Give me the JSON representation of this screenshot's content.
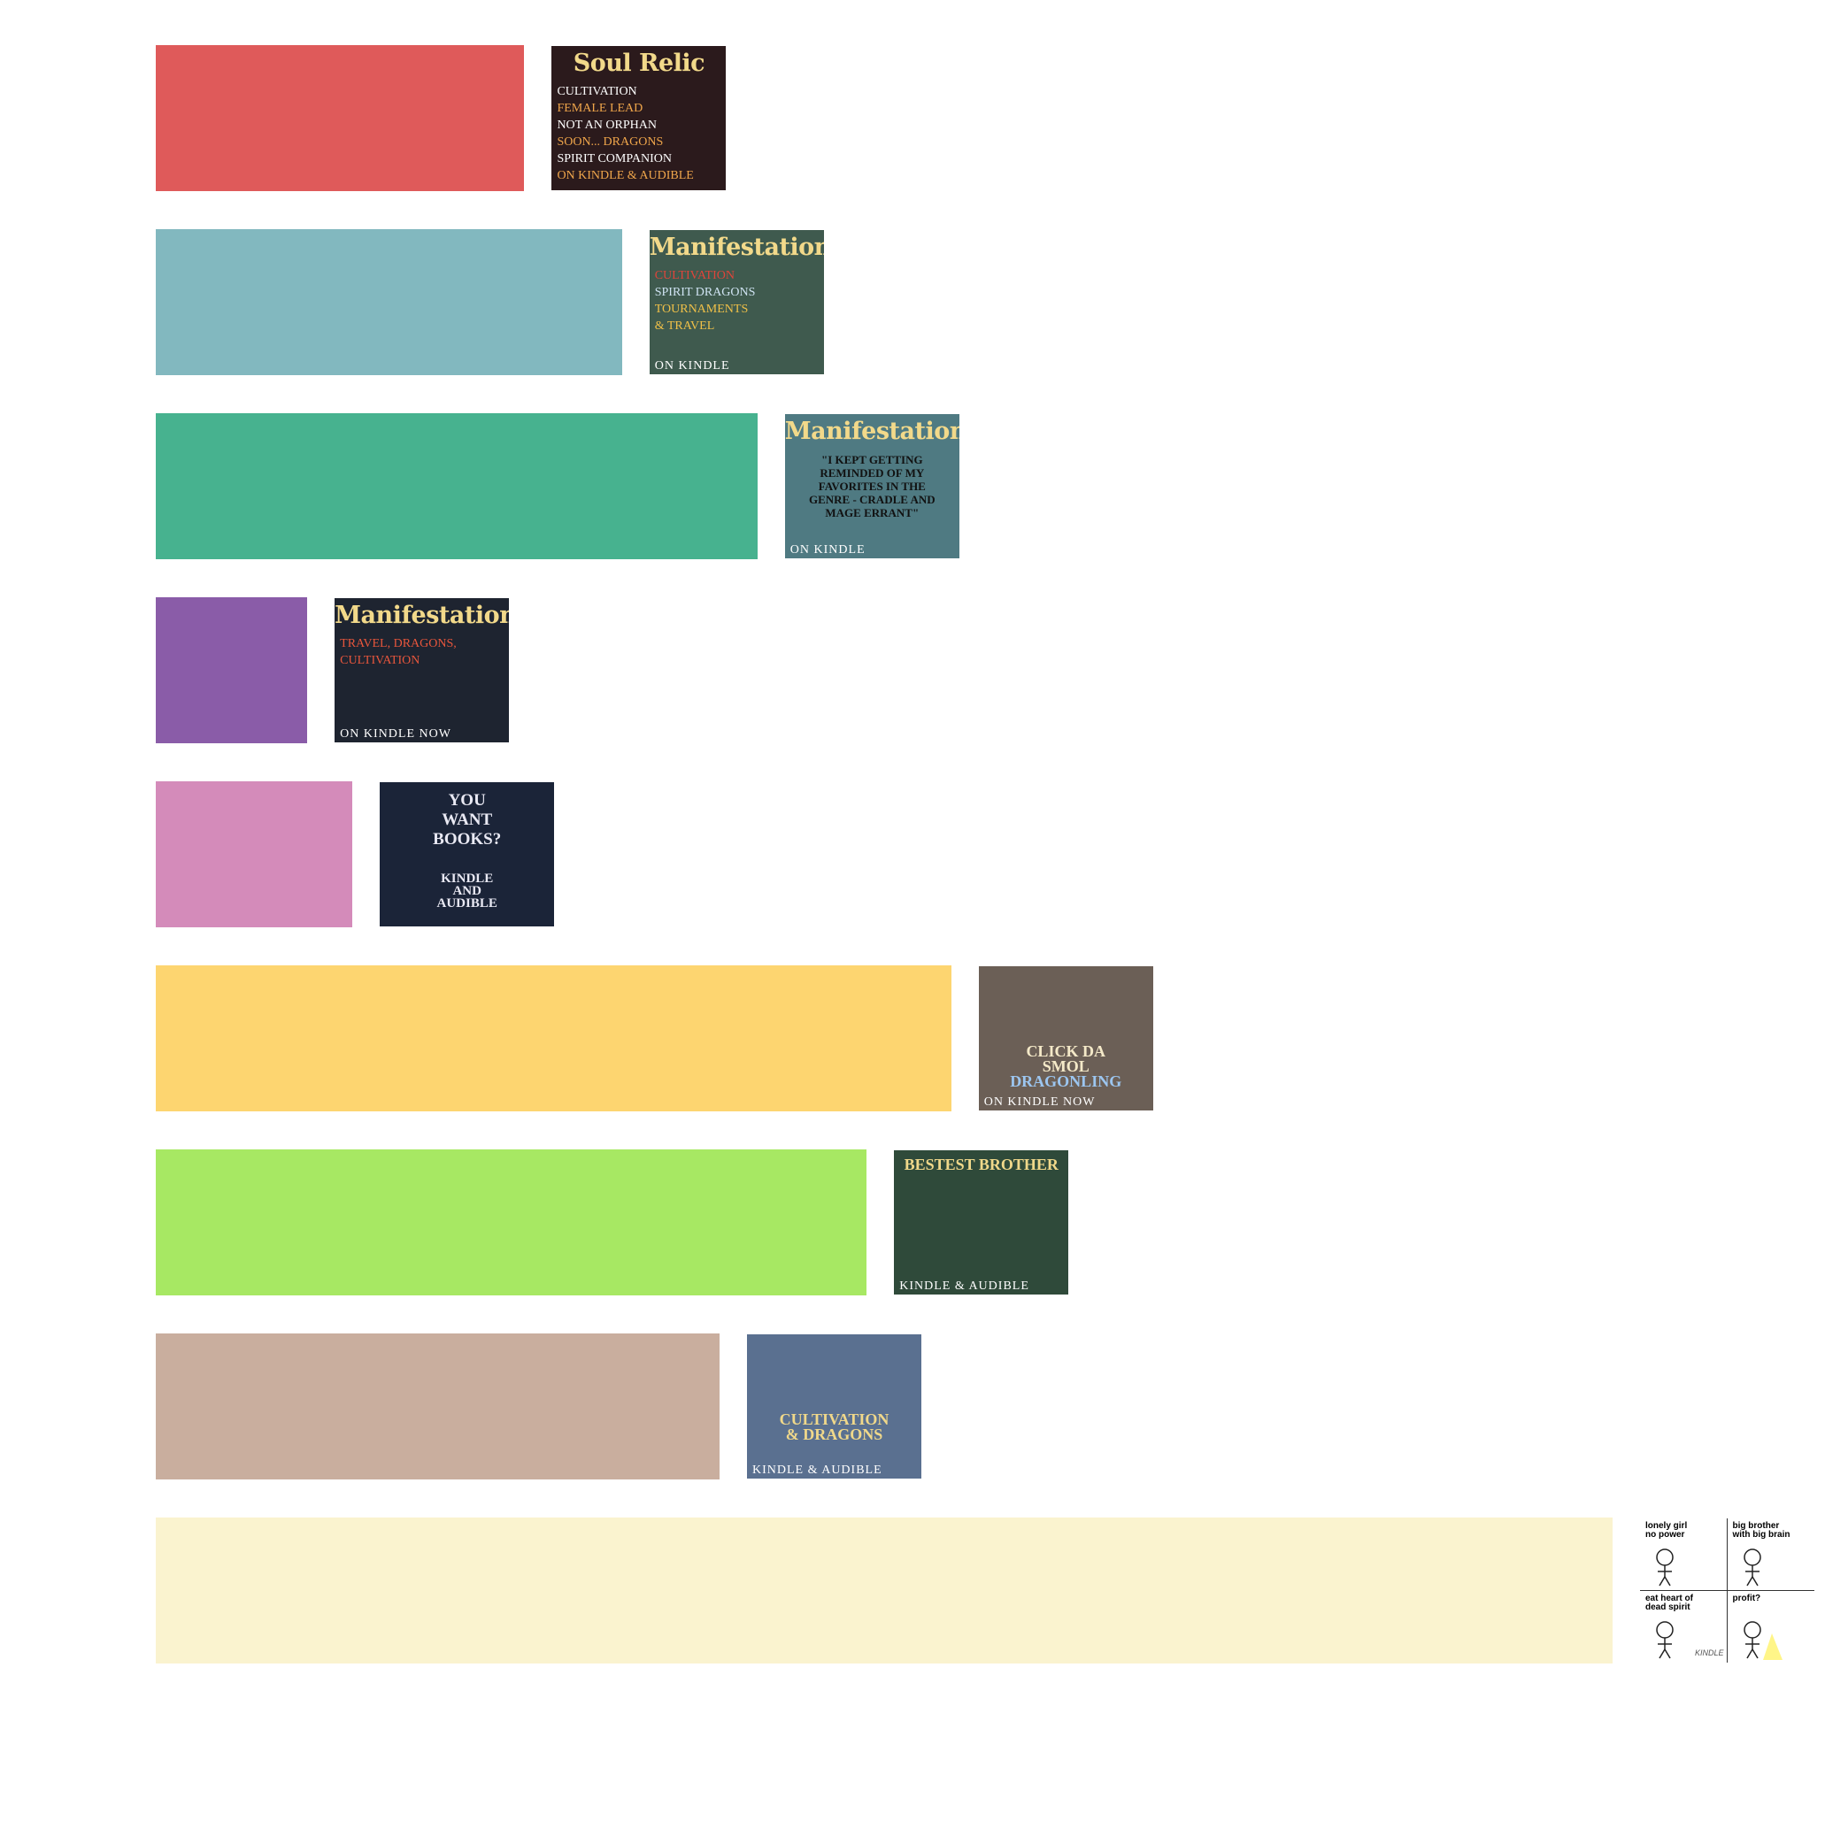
{
  "chart_data": {
    "type": "bar",
    "orientation": "horizontal",
    "grid": false,
    "axes_visible": false,
    "xlim": [
      0,
      100
    ],
    "values": [
      25.3,
      32.0,
      41.3,
      10.4,
      13.5,
      54.6,
      48.8,
      38.7,
      100.0
    ],
    "colors": [
      "#df5a5a",
      "#82b8bf",
      "#47b28f",
      "#8a5ca8",
      "#d48bba",
      "#fdd570",
      "#a7e863",
      "#c9ae9e",
      "#faf3cf"
    ],
    "labels": [
      {
        "name": "soul-relic-ad",
        "bg": "#2b1a1c",
        "title": "Soul Relic",
        "lines": [
          {
            "text": "CULTIVATION",
            "color": "#ffffff"
          },
          {
            "text": "FEMALE LEAD",
            "color": "#f0a64b"
          },
          {
            "text": "NOT AN ORPHAN",
            "color": "#ffffff"
          },
          {
            "text": "SOON... DRAGONS",
            "color": "#f0a64b"
          },
          {
            "text": "SPIRIT COMPANION",
            "color": "#ffffff"
          },
          {
            "text": "ON KINDLE & AUDIBLE",
            "color": "#f0a64b"
          }
        ],
        "footer": ""
      },
      {
        "name": "manifestation-ad-1",
        "bg": "#3f5a4e",
        "title": "Manifestation",
        "lines": [
          {
            "text": "CULTIVATION",
            "color": "#e0443a"
          },
          {
            "text": "SPIRIT DRAGONS",
            "color": "#cfe3f2"
          },
          {
            "text": "TOURNAMENTS",
            "color": "#f0c048"
          },
          {
            "text": "& TRAVEL",
            "color": "#f0c048"
          }
        ],
        "footer": "ON KINDLE"
      },
      {
        "name": "manifestation-ad-2",
        "bg": "#4f7a82",
        "title": "Manifestation",
        "lines": [
          {
            "text": "\"I KEPT GETTING",
            "color": "#111111"
          },
          {
            "text": "REMINDED OF MY",
            "color": "#111111"
          },
          {
            "text": "FAVORITES IN THE",
            "color": "#111111"
          },
          {
            "text": "GENRE - CRADLE AND",
            "color": "#111111"
          },
          {
            "text": "MAGE ERRANT\"",
            "color": "#111111"
          }
        ],
        "footer": "ON KINDLE"
      },
      {
        "name": "manifestation-ad-3",
        "bg": "#1e2430",
        "title": "Manifestation",
        "lines": [
          {
            "text": "TRAVEL, DRAGONS,",
            "color": "#e8563c"
          },
          {
            "text": "CULTIVATION",
            "color": "#e8563c"
          }
        ],
        "footer": "ON KINDLE NOW"
      },
      {
        "name": "you-want-books-ad",
        "bg": "#1b2438",
        "title": "",
        "lines": [
          {
            "text": "YOU",
            "color": "#e9e9f3"
          },
          {
            "text": "WANT",
            "color": "#e9e9f3"
          },
          {
            "text": "BOOKS?",
            "color": "#e9e9f3"
          },
          {
            "text": "KINDLE",
            "color": "#e9e9f3"
          },
          {
            "text": "AND",
            "color": "#e9e9f3"
          },
          {
            "text": "AUDIBLE",
            "color": "#e9e9f3"
          }
        ],
        "footer": ""
      },
      {
        "name": "smol-dragonling-ad",
        "bg": "#6b5f56",
        "title": "",
        "lines": [
          {
            "text": "CLICK DA",
            "color": "#f4e9c8"
          },
          {
            "text": "SMOL",
            "color": "#f4e9c8"
          },
          {
            "text": "DRAGONLING",
            "color": "#9cc6f0"
          }
        ],
        "footer": "ON KINDLE NOW"
      },
      {
        "name": "bestest-brother-ad",
        "bg": "#2f4a3a",
        "title": "",
        "lines": [
          {
            "text": "BESTEST BROTHER",
            "color": "#f0d88a"
          }
        ],
        "footer": "KINDLE & AUDIBLE"
      },
      {
        "name": "cultivation-dragons-ad",
        "bg": "#5a7090",
        "title": "",
        "lines": [
          {
            "text": "CULTIVATION",
            "color": "#f0d88a"
          },
          {
            "text": "& DRAGONS",
            "color": "#f0d88a"
          }
        ],
        "footer": "KINDLE & AUDIBLE"
      },
      {
        "name": "stick-comic-ad",
        "bg": "#ffffff",
        "title": "",
        "panels": [
          "lonely girl\nno power",
          "big brother\nwith big brain",
          "eat heart of\ndead spirit",
          "profit?"
        ],
        "scribble": "KINDLE",
        "lines": [],
        "footer": ""
      }
    ]
  }
}
